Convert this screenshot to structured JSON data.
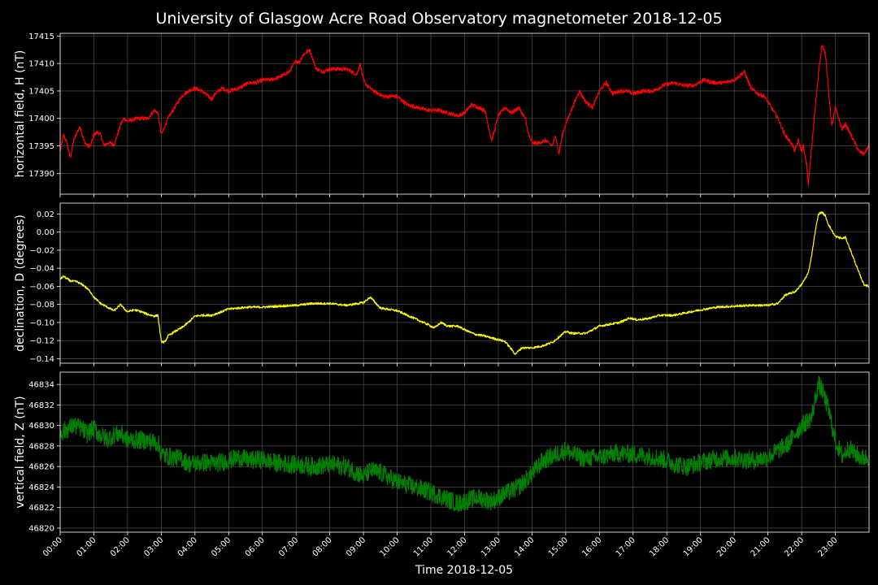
{
  "chart_data": {
    "type": "line",
    "title": "University of Glasgow Acre Road Observatory magnetometer 2018-12-05",
    "xlabel": "Time 2018-12-05",
    "x_ticks": [
      "00:00",
      "01:00",
      "02:00",
      "03:00",
      "04:00",
      "05:00",
      "06:00",
      "07:00",
      "08:00",
      "09:00",
      "10:00",
      "11:00",
      "12:00",
      "13:00",
      "14:00",
      "15:00",
      "16:00",
      "17:00",
      "18:00",
      "19:00",
      "20:00",
      "21:00",
      "22:00",
      "23:00"
    ],
    "x_range_hours": [
      0,
      24
    ],
    "grid": true,
    "background": "#000000",
    "panels": [
      {
        "id": "h",
        "ylabel": "horizontal field, H (nT)",
        "color": "#ff0000",
        "ylim": [
          17386.2,
          17415.5
        ],
        "yticks": [
          17390,
          17395,
          17400,
          17405,
          17410,
          17415
        ],
        "ytick_labels": [
          "17390",
          "17395",
          "17400",
          "17405",
          "17410",
          "17415"
        ],
        "noise": 0.35,
        "series": {
          "x": [
            0,
            0.1,
            0.2,
            0.3,
            0.4,
            0.5,
            0.6,
            0.7,
            0.8,
            0.9,
            1.0,
            1.1,
            1.2,
            1.3,
            1.4,
            1.5,
            1.6,
            1.7,
            1.8,
            1.9,
            2.0,
            2.3,
            2.6,
            2.8,
            2.9,
            3.0,
            3.2,
            3.4,
            3.6,
            3.8,
            4.0,
            4.2,
            4.4,
            4.5,
            4.6,
            4.8,
            5.0,
            5.3,
            5.6,
            5.8,
            6.0,
            6.2,
            6.5,
            6.8,
            7.0,
            7.1,
            7.2,
            7.4,
            7.6,
            7.8,
            8.0,
            8.2,
            8.5,
            8.8,
            8.9,
            9.0,
            9.1,
            9.3,
            9.6,
            10.0,
            10.3,
            10.6,
            10.9,
            11.2,
            11.5,
            11.8,
            12.0,
            12.2,
            12.4,
            12.6,
            12.8,
            12.9,
            13.0,
            13.2,
            13.4,
            13.6,
            13.8,
            13.9,
            14.0,
            14.2,
            14.4,
            14.6,
            14.7,
            14.8,
            14.9,
            15.0,
            15.2,
            15.4,
            15.6,
            15.8,
            16.0,
            16.2,
            16.4,
            16.6,
            16.8,
            17.0,
            17.3,
            17.6,
            17.9,
            18.2,
            18.5,
            18.8,
            19.1,
            19.4,
            19.7,
            20.0,
            20.2,
            20.3,
            20.5,
            20.7,
            20.9,
            21.0,
            21.2,
            21.3,
            21.5,
            21.7,
            21.8,
            21.9,
            22.0,
            22.05,
            22.1,
            22.15,
            22.2,
            22.3,
            22.4,
            22.5,
            22.6,
            22.7,
            22.8,
            22.9,
            23.0,
            23.1,
            23.2,
            23.3,
            23.5,
            23.7,
            23.85,
            23.99
          ],
          "values": [
            17394,
            17397,
            17395.5,
            17392.8,
            17396,
            17397.5,
            17398.5,
            17396,
            17395,
            17395,
            17397,
            17397.5,
            17397,
            17395,
            17395.5,
            17395.5,
            17395.2,
            17397,
            17399,
            17400,
            17399.5,
            17400,
            17400,
            17401.5,
            17401,
            17397,
            17400,
            17402,
            17404,
            17405,
            17405.5,
            17405,
            17404,
            17403.5,
            17404.5,
            17405.5,
            17405,
            17405.5,
            17406.5,
            17406.5,
            17407,
            17407,
            17407.5,
            17408.5,
            17410.5,
            17410.2,
            17411.5,
            17412.5,
            17409,
            17408.5,
            17409,
            17409,
            17409,
            17408,
            17410,
            17407,
            17406,
            17405,
            17404,
            17404,
            17402.5,
            17402,
            17401.5,
            17401.5,
            17401,
            17400.5,
            17401,
            17402.5,
            17402,
            17401.5,
            17396,
            17398,
            17400.5,
            17402,
            17401,
            17402,
            17400,
            17397,
            17395.5,
            17395.5,
            17396,
            17395,
            17397,
            17393.5,
            17397,
            17399,
            17402,
            17405,
            17403,
            17402,
            17405,
            17406.5,
            17404.5,
            17405,
            17405,
            17404.5,
            17405,
            17405,
            17406,
            17406.5,
            17406,
            17406,
            17407,
            17406.5,
            17406.5,
            17407,
            17408,
            17408.5,
            17405.5,
            17404.5,
            17404,
            17403,
            17401,
            17400,
            17397,
            17395.5,
            17394,
            17396,
            17394,
            17395,
            17393,
            17391.5,
            17388,
            17395,
            17402,
            17408,
            17413.5,
            17412,
            17405,
            17398.5,
            17402,
            17400,
            17398,
            17399,
            17396.5,
            17394,
            17393.5,
            17395
          ]
        }
      },
      {
        "id": "d",
        "ylabel": "declination, D (degrees)",
        "color": "#ffff00",
        "ylim": [
          -0.145,
          0.032
        ],
        "yticks": [
          -0.14,
          -0.12,
          -0.1,
          -0.08,
          -0.06,
          -0.04,
          -0.02,
          0.0,
          0.02
        ],
        "ytick_labels": [
          "−0.14",
          "−0.12",
          "−0.10",
          "−0.08",
          "−0.06",
          "−0.04",
          "−0.02",
          "0.00",
          "0.02"
        ],
        "noise": 0.0012,
        "series": {
          "x": [
            0,
            0.1,
            0.3,
            0.5,
            0.7,
            0.9,
            1.0,
            1.2,
            1.4,
            1.6,
            1.8,
            1.9,
            2.0,
            2.2,
            2.4,
            2.6,
            2.8,
            2.9,
            3.0,
            3.1,
            3.2,
            3.4,
            3.6,
            3.8,
            4.0,
            4.2,
            4.5,
            4.8,
            5.0,
            5.3,
            5.6,
            6.0,
            6.5,
            7.0,
            7.5,
            8.0,
            8.5,
            9.0,
            9.2,
            9.5,
            10.0,
            10.3,
            10.6,
            10.9,
            11.1,
            11.3,
            11.5,
            11.8,
            12.0,
            12.3,
            12.6,
            12.9,
            13.2,
            13.4,
            13.5,
            13.7,
            14.0,
            14.3,
            14.6,
            14.8,
            15.0,
            15.2,
            15.4,
            15.6,
            15.8,
            16.0,
            16.3,
            16.6,
            16.9,
            17.1,
            17.4,
            17.8,
            18.2,
            18.6,
            19.0,
            19.5,
            20.0,
            20.5,
            21.0,
            21.3,
            21.5,
            21.8,
            22.0,
            22.2,
            22.3,
            22.4,
            22.5,
            22.6,
            22.7,
            22.8,
            23.0,
            23.1,
            23.2,
            23.3,
            23.5,
            23.7,
            23.85,
            23.99
          ],
          "values": [
            -0.052,
            -0.049,
            -0.054,
            -0.055,
            -0.059,
            -0.066,
            -0.072,
            -0.079,
            -0.083,
            -0.087,
            -0.08,
            -0.085,
            -0.088,
            -0.086,
            -0.088,
            -0.091,
            -0.093,
            -0.092,
            -0.121,
            -0.122,
            -0.115,
            -0.11,
            -0.106,
            -0.1,
            -0.093,
            -0.092,
            -0.092,
            -0.088,
            -0.085,
            -0.084,
            -0.083,
            -0.083,
            -0.082,
            -0.081,
            -0.079,
            -0.079,
            -0.081,
            -0.078,
            -0.072,
            -0.084,
            -0.087,
            -0.092,
            -0.097,
            -0.102,
            -0.106,
            -0.1,
            -0.104,
            -0.104,
            -0.108,
            -0.113,
            -0.115,
            -0.118,
            -0.121,
            -0.13,
            -0.135,
            -0.128,
            -0.128,
            -0.126,
            -0.122,
            -0.116,
            -0.11,
            -0.112,
            -0.112,
            -0.112,
            -0.108,
            -0.104,
            -0.102,
            -0.1,
            -0.095,
            -0.097,
            -0.096,
            -0.092,
            -0.092,
            -0.089,
            -0.086,
            -0.083,
            -0.082,
            -0.081,
            -0.081,
            -0.079,
            -0.07,
            -0.066,
            -0.058,
            -0.045,
            -0.025,
            0.0,
            0.02,
            0.022,
            0.018,
            0.008,
            -0.005,
            -0.006,
            -0.007,
            -0.006,
            -0.025,
            -0.045,
            -0.058,
            -0.06
          ]
        }
      },
      {
        "id": "z",
        "ylabel": "vertical field, Z (nT)",
        "color": "#008000",
        "ylim": [
          46819.6,
          46835.2
        ],
        "yticks": [
          46820,
          46822,
          46824,
          46826,
          46828,
          46830,
          46832,
          46834
        ],
        "ytick_labels": [
          "46820",
          "46822",
          "46824",
          "46826",
          "46828",
          "46830",
          "46832",
          "46834"
        ],
        "noise": 0.9,
        "series": {
          "x": [
            0,
            0.2,
            0.4,
            0.6,
            0.8,
            1.0,
            1.2,
            1.4,
            1.6,
            1.8,
            2.0,
            2.3,
            2.6,
            2.9,
            3.0,
            3.1,
            3.3,
            3.6,
            3.8,
            4.0,
            4.3,
            4.6,
            5.0,
            5.3,
            5.6,
            6.0,
            6.3,
            6.6,
            7.0,
            7.5,
            8.0,
            8.5,
            9.0,
            9.2,
            9.5,
            10.0,
            10.5,
            11.0,
            11.5,
            11.8,
            12.0,
            12.4,
            12.8,
            13.0,
            13.3,
            13.6,
            14.0,
            14.3,
            14.6,
            15.0,
            15.2,
            15.5,
            16.0,
            16.5,
            17.0,
            17.5,
            18.0,
            18.3,
            18.6,
            19.0,
            19.5,
            20.0,
            20.5,
            21.0,
            21.3,
            21.6,
            21.8,
            22.0,
            22.2,
            22.3,
            22.4,
            22.5,
            22.6,
            22.8,
            23.0,
            23.2,
            23.4,
            23.6,
            23.8,
            23.99
          ],
          "values": [
            46829.3,
            46829.6,
            46830.0,
            46829.8,
            46829.2,
            46829.7,
            46829.0,
            46828.7,
            46829.1,
            46829.2,
            46828.6,
            46828.6,
            46828.5,
            46828.3,
            46827.2,
            46827.1,
            46826.9,
            46826.8,
            46826.3,
            46826.3,
            46826.4,
            46826.3,
            46826.6,
            46826.9,
            46826.6,
            46826.7,
            46826.4,
            46826.3,
            46826.2,
            46826.0,
            46826.2,
            46826.0,
            46825.0,
            46825.6,
            46825.4,
            46824.5,
            46824.0,
            46823.5,
            46822.8,
            46822.4,
            46822.6,
            46823.0,
            46822.6,
            46823.0,
            46823.5,
            46824.0,
            46825.3,
            46826.5,
            46827.0,
            46827.6,
            46827.2,
            46826.8,
            46826.9,
            46827.3,
            46827.2,
            46827.0,
            46826.6,
            46826.2,
            46826.0,
            46826.4,
            46826.8,
            46826.8,
            46826.6,
            46826.9,
            46827.6,
            46828.2,
            46829.2,
            46830.0,
            46830.5,
            46830.8,
            46832.5,
            46834.0,
            46833.5,
            46831.5,
            46828.5,
            46827.0,
            46827.8,
            46827.2,
            46826.8,
            46826.9
          ]
        }
      }
    ]
  }
}
